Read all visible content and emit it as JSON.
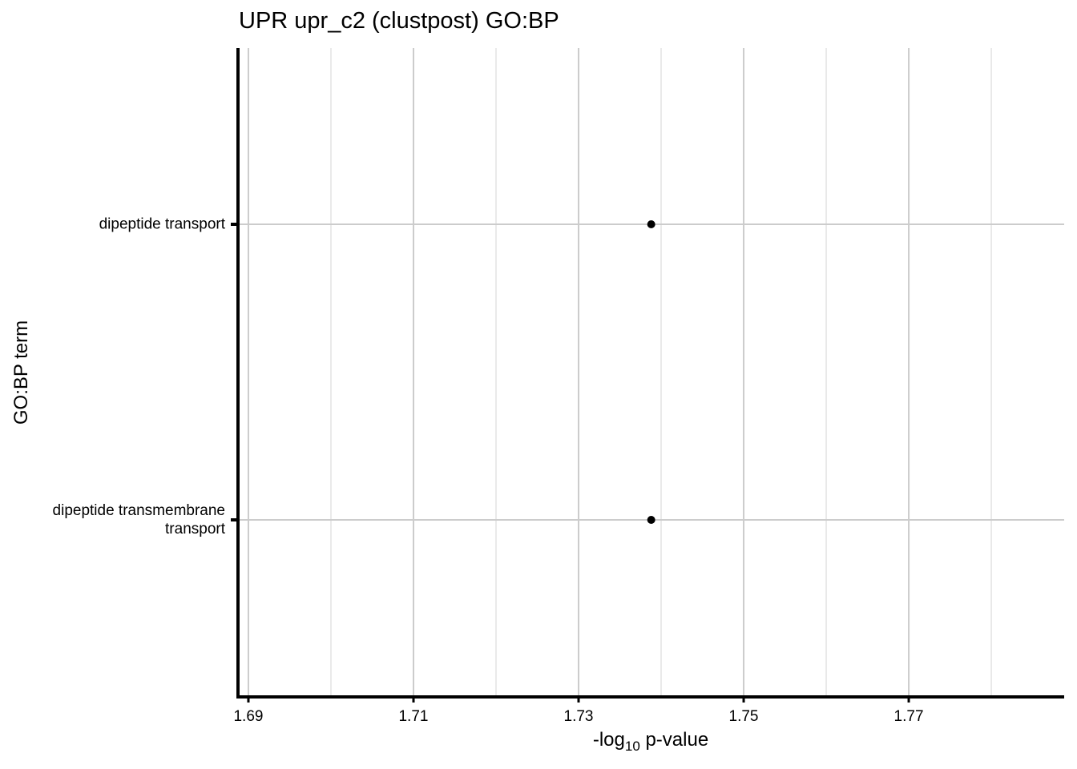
{
  "chart_data": {
    "type": "scatter",
    "title": "UPR upr_c2 (clustpost) GO:BP",
    "xlabel_prefix": "-log",
    "xlabel_sub": "10",
    "xlabel_suffix": " p-value",
    "ylabel": "GO:BP term",
    "xlim": [
      1.68874,
      1.78883
    ],
    "x_major_ticks": [
      1.69,
      1.71,
      1.73,
      1.75,
      1.77
    ],
    "x_tick_labels": [
      "1.69",
      "1.71",
      "1.73",
      "1.75",
      "1.77"
    ],
    "x_minor_ticks": [
      1.7,
      1.72,
      1.74,
      1.76,
      1.78
    ],
    "categories": [
      "dipeptide transport",
      "dipeptide transmembrane\ntransport"
    ],
    "points": [
      {
        "y": "dipeptide transport",
        "x": 1.7388
      },
      {
        "y": "dipeptide transmembrane\ntransport",
        "x": 1.7388
      }
    ],
    "grid": true,
    "colors": {
      "point": "#000000",
      "grid_major": "#cccccc",
      "grid_minor": "#e3e3e3",
      "axis": "#000000"
    }
  }
}
